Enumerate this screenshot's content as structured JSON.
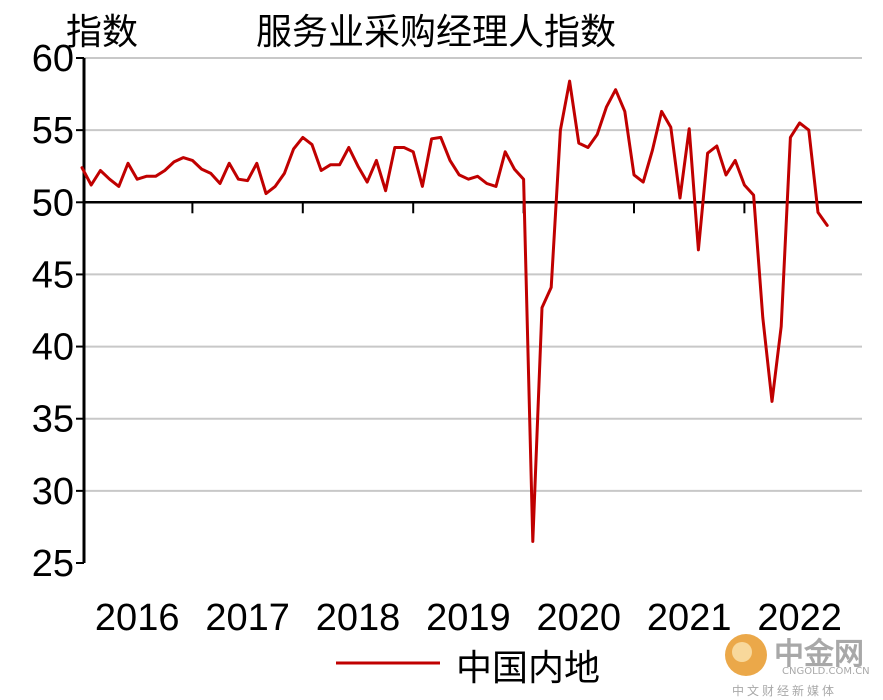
{
  "chart_data": {
    "type": "line",
    "title": "服务业采购经理人指数",
    "ylabel": "指数",
    "ylim": [
      25,
      60
    ],
    "yticks": [
      25,
      30,
      35,
      40,
      45,
      50,
      55,
      60
    ],
    "xticks": [
      "2016",
      "2017",
      "2018",
      "2019",
      "2020",
      "2021",
      "2022"
    ],
    "reference_line": 50,
    "grid": true,
    "legend_position": "bottom",
    "series": [
      {
        "name": "中国内地",
        "color": "#c00000",
        "start": "2016-01",
        "values": [
          52.4,
          51.2,
          52.2,
          51.6,
          51.1,
          52.7,
          51.6,
          51.8,
          51.8,
          52.2,
          52.8,
          53.1,
          52.9,
          52.3,
          52.0,
          51.3,
          52.7,
          51.6,
          51.5,
          52.7,
          50.6,
          51.1,
          52.0,
          53.7,
          54.5,
          54.0,
          52.2,
          52.6,
          52.6,
          53.8,
          52.5,
          51.4,
          52.9,
          50.8,
          53.8,
          53.8,
          53.5,
          51.1,
          54.4,
          54.5,
          52.9,
          51.9,
          51.6,
          51.8,
          51.3,
          51.1,
          53.5,
          52.3,
          51.6,
          26.5,
          42.7,
          44.1,
          55.0,
          58.4,
          54.1,
          53.8,
          54.7,
          56.6,
          57.8,
          56.3,
          51.9,
          51.4,
          53.6,
          56.3,
          55.2,
          50.3,
          55.1,
          46.7,
          53.4,
          53.9,
          51.9,
          52.9,
          51.2,
          50.5,
          42.0,
          36.2,
          41.4,
          54.5,
          55.5,
          55.0,
          49.3,
          48.4
        ]
      }
    ]
  },
  "legend": {
    "label": "中国内地"
  },
  "watermark": {
    "name": "中金网",
    "site": "CNGOLD.COM.CN",
    "tagline": "中文财经新媒体"
  }
}
